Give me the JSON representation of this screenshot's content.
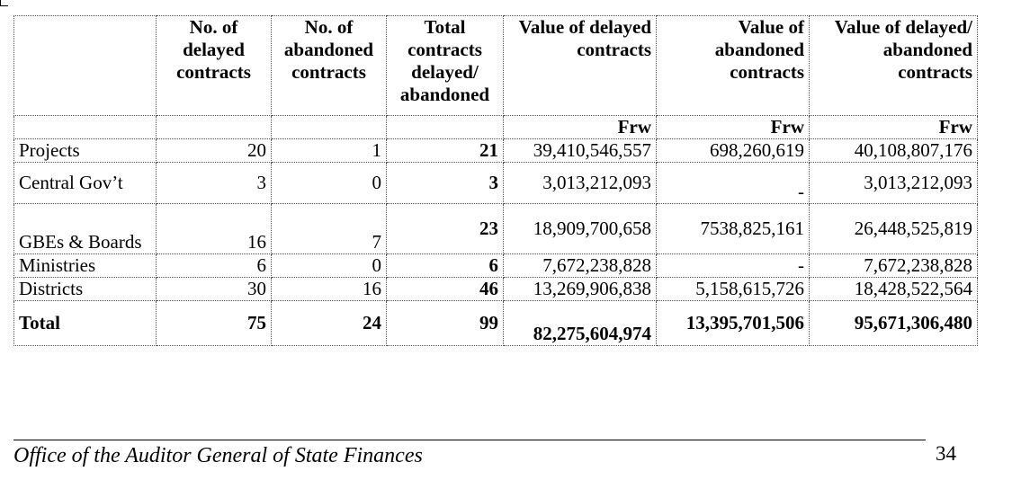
{
  "table": {
    "headers": [
      "",
      "No. of delayed contracts",
      "No. of abandoned contracts",
      "Total contracts delayed/ abandoned",
      "Value of delayed contracts",
      "Value of abandoned contracts",
      "Value of delayed/ abandoned contracts"
    ],
    "currency": [
      "",
      "",
      "",
      "",
      "Frw",
      "Frw",
      "Frw"
    ],
    "rows": [
      {
        "name": "Projects",
        "delayed": "20",
        "abandoned": "1",
        "total": "21",
        "value_delayed": "39,410,546,557",
        "value_abandoned": "698,260,619",
        "value_total": "40,108,807,176"
      },
      {
        "name": "Central Gov’t",
        "delayed": "3",
        "abandoned": "0",
        "total": "3",
        "value_delayed": "3,013,212,093",
        "value_abandoned": "-",
        "value_total": "3,013,212,093"
      },
      {
        "name": "GBEs & Boards",
        "delayed": "16",
        "abandoned": "7",
        "total": "23",
        "value_delayed": "18,909,700,658",
        "value_abandoned": "7538,825,161",
        "value_total": "26,448,525,819"
      },
      {
        "name": "Ministries",
        "delayed": "6",
        "abandoned": "0",
        "total": "6",
        "value_delayed": "7,672,238,828",
        "value_abandoned": "-",
        "value_total": "7,672,238,828"
      },
      {
        "name": "Districts",
        "delayed": "30",
        "abandoned": "16",
        "total": "46",
        "value_delayed": "13,269,906,838",
        "value_abandoned": "5,158,615,726",
        "value_total": "18,428,522,564"
      }
    ],
    "total_row": {
      "name": "Total",
      "delayed": "75",
      "abandoned": "24",
      "total": "99",
      "value_delayed": "82,275,604,974",
      "value_abandoned": "13,395,701,506",
      "value_total": "95,671,306,480"
    }
  },
  "footer": {
    "office": "Office of the Auditor General of State Finances",
    "page_number": "34"
  }
}
